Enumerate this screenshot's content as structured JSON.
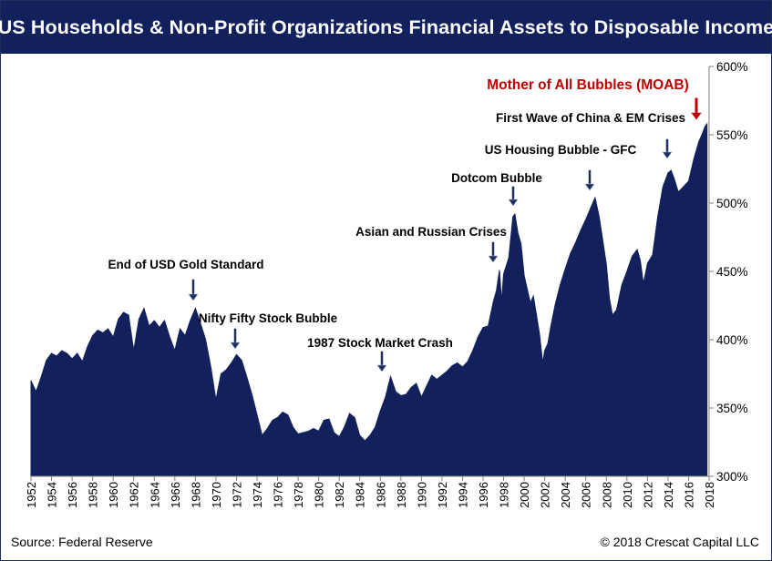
{
  "title": "US Households & Non-Profit Organizations Financial Assets to Disposable Income",
  "footer": {
    "source": "Source: Federal Reserve",
    "copyright": "© 2018 Crescat Capital LLC"
  },
  "colors": {
    "area": "#12205c",
    "title_bg": "#12205c",
    "moab": "#c00000",
    "arrow": "#1f2f5c"
  },
  "chart_data": {
    "type": "area",
    "x_unit": "year",
    "xlim": [
      1952,
      2018
    ],
    "ylim": [
      300,
      600
    ],
    "y_ticks": [
      "300%",
      "350%",
      "400%",
      "450%",
      "500%",
      "550%",
      "600%"
    ],
    "x_ticks": [
      "1952",
      "1954",
      "1956",
      "1958",
      "1960",
      "1962",
      "1964",
      "1966",
      "1968",
      "1970",
      "1972",
      "1974",
      "1976",
      "1978",
      "1980",
      "1982",
      "1984",
      "1986",
      "1988",
      "1990",
      "1992",
      "1994",
      "1996",
      "1998",
      "2000",
      "2002",
      "2004",
      "2006",
      "2008",
      "2010",
      "2012",
      "2014",
      "2016",
      "2018"
    ],
    "grid": false,
    "series": [
      {
        "values": [
          [
            1952.0,
            370
          ],
          [
            1952.5,
            362
          ],
          [
            1953.0,
            373
          ],
          [
            1953.5,
            385
          ],
          [
            1954.0,
            390
          ],
          [
            1954.5,
            388
          ],
          [
            1955.0,
            392
          ],
          [
            1955.5,
            390
          ],
          [
            1956.0,
            386
          ],
          [
            1956.5,
            390
          ],
          [
            1957.0,
            384
          ],
          [
            1957.5,
            395
          ],
          [
            1958.0,
            403
          ],
          [
            1958.5,
            407
          ],
          [
            1959.0,
            405
          ],
          [
            1959.5,
            408
          ],
          [
            1960.0,
            402
          ],
          [
            1960.5,
            415
          ],
          [
            1961.0,
            420
          ],
          [
            1961.5,
            418
          ],
          [
            1962.0,
            392
          ],
          [
            1962.5,
            415
          ],
          [
            1963.0,
            423
          ],
          [
            1963.5,
            410
          ],
          [
            1964.0,
            414
          ],
          [
            1964.5,
            409
          ],
          [
            1965.0,
            414
          ],
          [
            1965.5,
            402
          ],
          [
            1966.0,
            392
          ],
          [
            1966.5,
            408
          ],
          [
            1967.0,
            403
          ],
          [
            1967.5,
            414
          ],
          [
            1968.0,
            423
          ],
          [
            1968.5,
            412
          ],
          [
            1969.0,
            400
          ],
          [
            1969.5,
            380
          ],
          [
            1970.0,
            356
          ],
          [
            1970.5,
            375
          ],
          [
            1971.0,
            378
          ],
          [
            1971.5,
            383
          ],
          [
            1972.0,
            389
          ],
          [
            1972.5,
            385
          ],
          [
            1973.0,
            373
          ],
          [
            1973.5,
            360
          ],
          [
            1974.0,
            345
          ],
          [
            1974.5,
            330
          ],
          [
            1975.0,
            335
          ],
          [
            1975.5,
            341
          ],
          [
            1976.0,
            343
          ],
          [
            1976.5,
            347
          ],
          [
            1977.0,
            345
          ],
          [
            1977.5,
            336
          ],
          [
            1978.0,
            331
          ],
          [
            1978.5,
            332
          ],
          [
            1979.0,
            333
          ],
          [
            1979.5,
            335
          ],
          [
            1980.0,
            333
          ],
          [
            1980.5,
            341
          ],
          [
            1981.0,
            342
          ],
          [
            1981.5,
            332
          ],
          [
            1982.0,
            329
          ],
          [
            1982.5,
            336
          ],
          [
            1983.0,
            346
          ],
          [
            1983.5,
            343
          ],
          [
            1984.0,
            330
          ],
          [
            1984.5,
            326
          ],
          [
            1985.0,
            330
          ],
          [
            1985.5,
            336
          ],
          [
            1986.0,
            348
          ],
          [
            1986.5,
            358
          ],
          [
            1987.0,
            373
          ],
          [
            1987.5,
            362
          ],
          [
            1988.0,
            359
          ],
          [
            1988.5,
            360
          ],
          [
            1989.0,
            365
          ],
          [
            1989.5,
            368
          ],
          [
            1990.0,
            358
          ],
          [
            1990.5,
            366
          ],
          [
            1991.0,
            374
          ],
          [
            1991.5,
            371
          ],
          [
            1992.0,
            374
          ],
          [
            1992.5,
            377
          ],
          [
            1993.0,
            381
          ],
          [
            1993.5,
            383
          ],
          [
            1994.0,
            380
          ],
          [
            1994.5,
            384
          ],
          [
            1995.0,
            392
          ],
          [
            1995.5,
            402
          ],
          [
            1996.0,
            409
          ],
          [
            1996.5,
            410
          ],
          [
            1997.0,
            428
          ],
          [
            1997.3,
            436
          ],
          [
            1997.6,
            451
          ],
          [
            1997.8,
            428
          ],
          [
            1998.0,
            448
          ],
          [
            1998.5,
            460
          ],
          [
            1998.9,
            490
          ],
          [
            1999.1,
            492
          ],
          [
            1999.4,
            478
          ],
          [
            1999.7,
            470
          ],
          [
            2000.0,
            447
          ],
          [
            2000.3,
            437
          ],
          [
            2000.6,
            427
          ],
          [
            2000.9,
            432
          ],
          [
            2001.2,
            418
          ],
          [
            2001.5,
            404
          ],
          [
            2001.8,
            383
          ],
          [
            2002.0,
            392
          ],
          [
            2002.3,
            397
          ],
          [
            2002.6,
            410
          ],
          [
            2003.0,
            425
          ],
          [
            2003.5,
            440
          ],
          [
            2004.0,
            452
          ],
          [
            2004.5,
            463
          ],
          [
            2005.0,
            471
          ],
          [
            2005.5,
            480
          ],
          [
            2006.0,
            488
          ],
          [
            2006.5,
            497
          ],
          [
            2006.9,
            504
          ],
          [
            2007.3,
            490
          ],
          [
            2007.6,
            475
          ],
          [
            2008.0,
            455
          ],
          [
            2008.3,
            430
          ],
          [
            2008.6,
            418
          ],
          [
            2009.0,
            422
          ],
          [
            2009.5,
            440
          ],
          [
            2010.0,
            450
          ],
          [
            2010.5,
            461
          ],
          [
            2011.0,
            466
          ],
          [
            2011.3,
            458
          ],
          [
            2011.6,
            441
          ],
          [
            2012.0,
            456
          ],
          [
            2012.5,
            462
          ],
          [
            2013.0,
            490
          ],
          [
            2013.5,
            512
          ],
          [
            2014.0,
            522
          ],
          [
            2014.3,
            524
          ],
          [
            2014.6,
            518
          ],
          [
            2015.0,
            508
          ],
          [
            2015.5,
            512
          ],
          [
            2016.0,
            516
          ],
          [
            2016.5,
            532
          ],
          [
            2017.0,
            545
          ],
          [
            2017.3,
            550
          ],
          [
            2017.6,
            556
          ],
          [
            2017.8,
            558
          ]
        ]
      }
    ],
    "annotations": [
      {
        "label": "End of USD Gold Standard",
        "x": 1968.0,
        "y": 423
      },
      {
        "label": "Nifty Fifty Stock Bubble",
        "x": 1972.3,
        "y": 389
      },
      {
        "label": "1987 Stock Market Crash",
        "x": 1986.8,
        "y": 373
      },
      {
        "label": "Asian and Russian Crises",
        "x": 1997.6,
        "y": 451
      },
      {
        "label": "Dotcom Bubble",
        "x": 1999.1,
        "y": 492
      },
      {
        "label": "US Housing Bubble - GFC",
        "x": 2006.9,
        "y": 504
      },
      {
        "label": "First Wave of China & EM Crises",
        "x": 2014.3,
        "y": 524
      },
      {
        "label": "Mother of All Bubbles (MOAB)",
        "x": 2017.8,
        "y": 558
      }
    ]
  }
}
